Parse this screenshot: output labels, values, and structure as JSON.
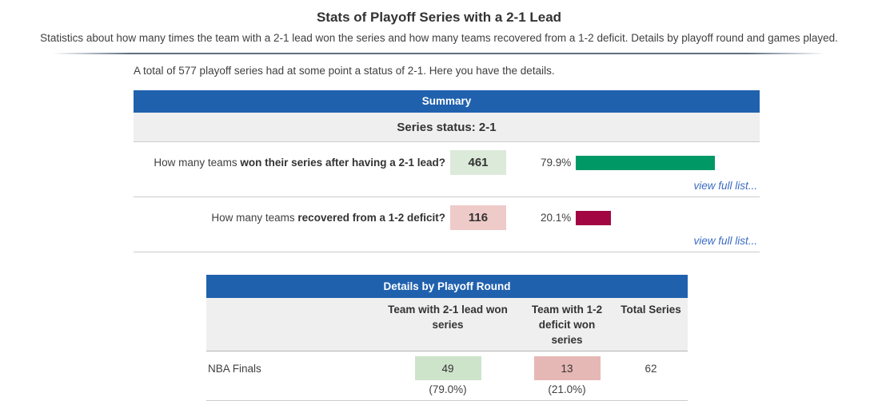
{
  "page": {
    "title": "Stats of Playoff Series with a 2-1 Lead",
    "subtitle": "Statistics about how many times the team with a 2-1 lead won the series and how many teams recovered from a 1-2 deficit. Details by playoff round and games played.",
    "intro": "A total of 577 playoff series had at some point a status of 2-1. Here you have the details."
  },
  "summary": {
    "header": "Summary",
    "status_label": "Series status: 2-1",
    "rows": [
      {
        "question_plain": "How many teams ",
        "question_bold": "won their series after having a 2-1 lead?",
        "count": "461",
        "percent_label": "79.9%",
        "link_label": "view full list..."
      },
      {
        "question_plain": "How many teams ",
        "question_bold": "recovered from a 1-2 deficit?",
        "count": "116",
        "percent_label": "20.1%",
        "link_label": "view full list..."
      }
    ]
  },
  "details": {
    "header": "Details by Playoff Round",
    "columns": {
      "round": "",
      "lead_won": "Team with 2-1 lead won series",
      "deficit_won": "Team with 1-2 deficit won series",
      "total": "Total Series"
    },
    "rows": [
      {
        "round": "NBA Finals",
        "lead_won": "49",
        "lead_won_pct": "(79.0%)",
        "deficit_won": "13",
        "deficit_won_pct": "(21.0%)",
        "total": "62"
      }
    ]
  },
  "colors": {
    "header_blue": "#2061ae",
    "green_bar": "#009966",
    "maroon_bar": "#a30743",
    "green_box": "#dcead9",
    "pink_box": "#eecac8",
    "green_box_details": "#cde4ca",
    "pink_box_details": "#e6b8b5",
    "link_blue": "#3a6bc4"
  }
}
